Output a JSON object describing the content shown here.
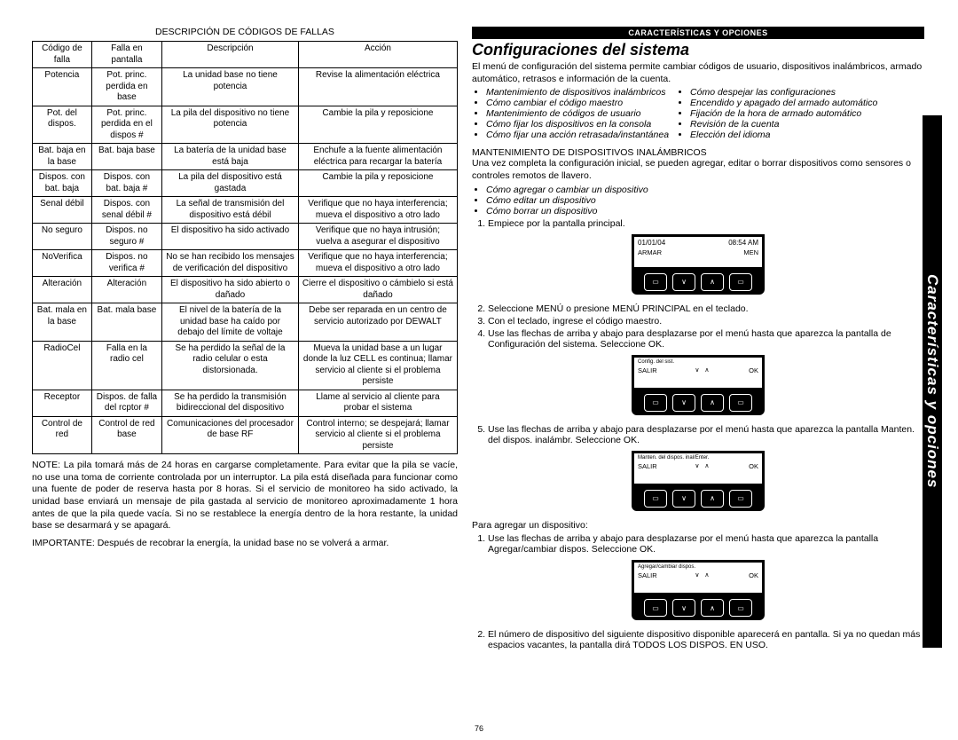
{
  "side_tab": "Características y opciones",
  "page_number": "76",
  "left": {
    "table_title": "DESCRIPCIÓN DE CÓDIGOS DE FALLAS",
    "headers": [
      "Código de falla",
      "Falla en pantalla",
      "Descripción",
      "Acción"
    ],
    "rows": [
      [
        "Potencia",
        "Pot. princ. perdida en base",
        "La unidad base no tiene potencia",
        "Revise la alimentación eléctrica"
      ],
      [
        "Pot. del dispos.",
        "Pot. princ. perdida en el dispos #",
        "La pila del dispositivo no tiene potencia",
        "Cambie la pila y reposicione"
      ],
      [
        "Bat. baja en la base",
        "Bat. baja base",
        "La batería de la unidad base está baja",
        "Enchufe a la fuente alimentación eléctrica para recargar la batería"
      ],
      [
        "Dispos. con bat. baja",
        "Dispos. con bat. baja #",
        "La pila del dispositivo está gastada",
        "Cambie la pila y reposicione"
      ],
      [
        "Senal débil",
        "Dispos. con senal débil #",
        "La señal de transmisión del dispositivo está débil",
        "Verifique que no haya interferencia; mueva el dispositivo a otro lado"
      ],
      [
        "No seguro",
        "Dispos. no seguro #",
        "El dispositivo ha sido activado",
        "Verifique que no haya intrusión; vuelva a asegurar el dispositivo"
      ],
      [
        "NoVerifica",
        "Dispos. no verifica #",
        "No se han recibido los mensajes de verificación del dispositivo",
        "Verifique que no haya interferencia; mueva el dispositivo a otro lado"
      ],
      [
        "Alteración",
        "Alteración",
        "El dispositivo ha sido abierto o dañado",
        "Cierre el dispositivo o cámbielo si está dañado"
      ],
      [
        "Bat. mala en la base",
        "Bat. mala base",
        "El nivel de la batería de la unidad base ha caído por debajo del límite de voltaje",
        "Debe ser reparada en un centro de servicio autorizado por DEWALT"
      ],
      [
        "RadioCel",
        "Falla en la radio cel",
        "Se ha perdido la señal de la radio celular o esta distorsionada.",
        "Mueva la unidad base a un lugar donde la luz CELL es continua; llamar servicio al cliente si el problema persiste"
      ],
      [
        "Receptor",
        "Dispos. de falla del rcptor #",
        "Se ha perdido la transmisión bidireccional del dispositivo",
        "Llame al servicio al cliente para probar el sistema"
      ],
      [
        "Control de red",
        "Control de red base",
        "Comunicaciones del procesador de base RF",
        "Control interno; se despejará; llamar servicio al cliente si el problema persiste"
      ]
    ],
    "note": "NOTE: La pila tomará más de 24 horas en cargarse completamente. Para evitar que la pila se vacíe, no use una toma de corriente controlada por un interruptor. La pila está diseñada para funcionar como una fuente de poder de reserva hasta por 8 horas. Si el servicio de monitoreo ha sido activado, la unidad base enviará un mensaje de pila gastada al servicio de monitoreo aproximadamente 1 hora antes de que la pila quede vacía. Si no se restablece la energía dentro de la hora restante, la unidad base se desarmará y se apagará.",
    "importante": "IMPORTANTE: Después de recobrar la energía, la unidad base no se volverá a armar."
  },
  "right": {
    "black_bar": "CARACTERÍSTICAS Y OPCIONES",
    "title": "Configuraciones del sistema",
    "intro": "El menú de configuración del sistema permite cambiar códigos de usuario, dispositivos inalámbricos, armado automático, retrasos e información de la cuenta.",
    "bullets_left": [
      "Mantenimiento de dispositivos inalámbricos",
      "Cómo cambiar el código maestro",
      "Mantenimiento de códigos de usuario",
      "Cómo fijar los dispositivos en la consola",
      "Cómo fijar una acción retrasada/instantánea"
    ],
    "bullets_right": [
      "Cómo despejar las configuraciones",
      "Encendido y apagado del armado automático",
      "Fijación de la hora de armado automático",
      "Revisión de la cuenta",
      "Elección del idioma"
    ],
    "sub1_head": "MANTENIMIENTO DE DISPOSITIVOS INALÁMBRICOS",
    "sub1_text": "Una vez completa la configuración inicial, se pueden agregar, editar o borrar dispositivos como sensores o controles remotos de llavero.",
    "sub1_bullets": [
      "Cómo agregar o cambiar un dispositivo",
      "Cómo editar un dispositivo",
      "Cómo borrar un dispositivo"
    ],
    "step1": "Empiece por la pantalla principal.",
    "device1": {
      "l1a": "01/01/04",
      "l1b": "08:54 AM",
      "l2a": "ARMAR",
      "l2b": "MEN"
    },
    "step2": "Seleccione MENÚ o presione MENÚ PRINCIPAL en el teclado.",
    "step3": "Con el teclado, ingrese el código maestro.",
    "step4": "Use las flechas de arriba y abajo para desplazarse por el menú hasta que aparezca la pantalla de Configuración del sistema. Seleccione OK.",
    "device2": {
      "l1": "Config. del sist.",
      "l2a": "SALIR",
      "arrows": "∨  ∧",
      "l2b": "OK"
    },
    "step5": "Use las flechas de arriba y abajo para desplazarse por el menú hasta que aparezca la pantalla Manten. del dispos. inalámbr. Seleccione OK.",
    "device3": {
      "l1": "Manten. del dispos. inal/Enter.",
      "l2a": "SALIR",
      "arrows": "∨  ∧",
      "l2b": "OK"
    },
    "add_intro": "Para agregar un dispositivo:",
    "add_step1": "Use las flechas de arriba y abajo para desplazarse por el menú hasta que aparezca la pantalla Agregar/cambiar dispos. Seleccione OK.",
    "device4": {
      "l1": "Agregar/cambiar dispos.",
      "l2a": "SALIR",
      "arrows": "∨  ∧",
      "l2b": "OK"
    },
    "add_step2": "El número de dispositivo del siguiente dispositivo disponible aparecerá en pantalla. Si ya no quedan más espacios vacantes, la pantalla dirá TODOS LOS DISPOS. EN USO.",
    "btn_blank": "▭",
    "btn_down": "∨",
    "btn_up": "∧"
  }
}
